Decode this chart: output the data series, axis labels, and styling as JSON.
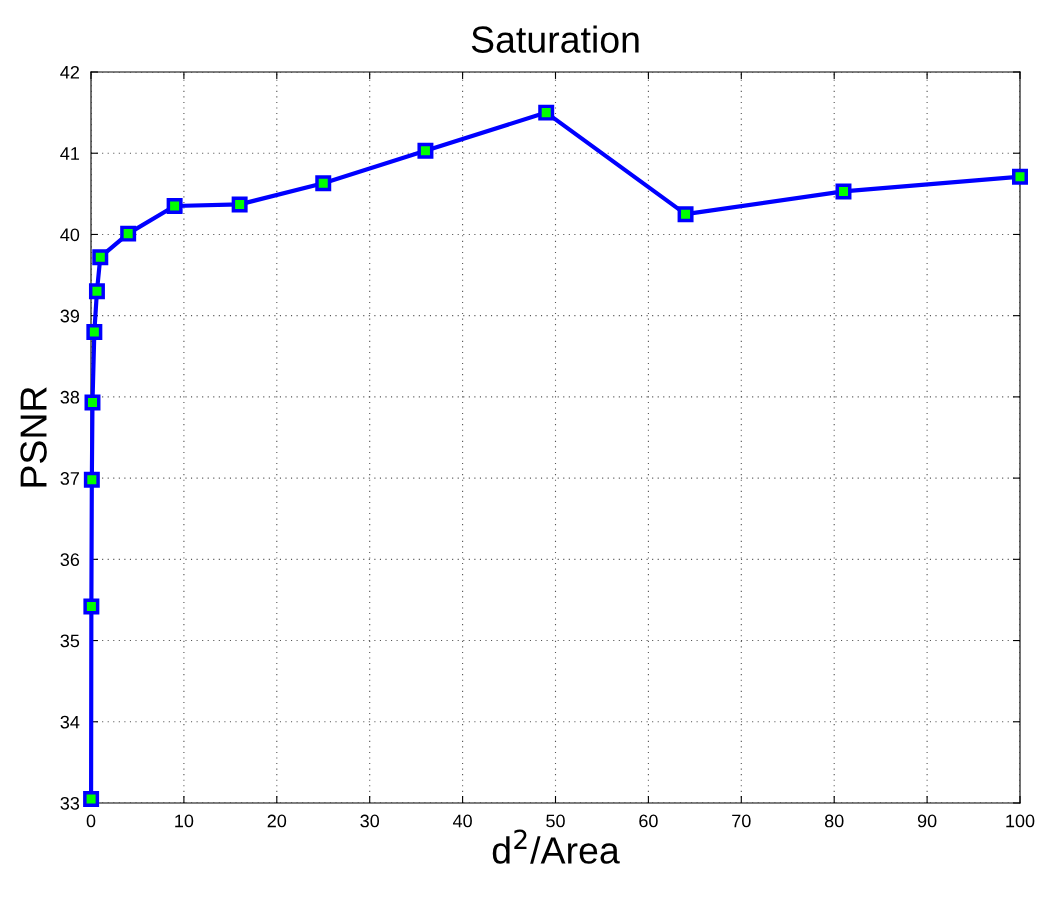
{
  "chart_data": {
    "type": "line",
    "title": "Saturation",
    "xlabel": "d$^{2}$/Area",
    "ylabel": "PSNR",
    "x": [
      0.01,
      0.04,
      0.09,
      0.16,
      0.36,
      0.64,
      1,
      4,
      9,
      16,
      25,
      36,
      49,
      64,
      81,
      100
    ],
    "series": [
      {
        "color": "#0000ff",
        "values": [
          33.05,
          35.42,
          36.98,
          37.93,
          38.8,
          39.3,
          39.72,
          40.01,
          40.35,
          40.37,
          40.63,
          41.03,
          41.5,
          40.25,
          40.53,
          40.71
        ]
      }
    ],
    "xlim": [
      0,
      100
    ],
    "xticks": [
      0,
      10,
      20,
      30,
      40,
      50,
      60,
      70,
      80,
      90,
      100
    ],
    "ylim": [
      33,
      42
    ],
    "yticks": [
      33,
      34,
      35,
      36,
      37,
      38,
      39,
      40,
      41,
      42
    ],
    "grid": true,
    "marker": "square",
    "line_style": "solid",
    "legend": false
  }
}
